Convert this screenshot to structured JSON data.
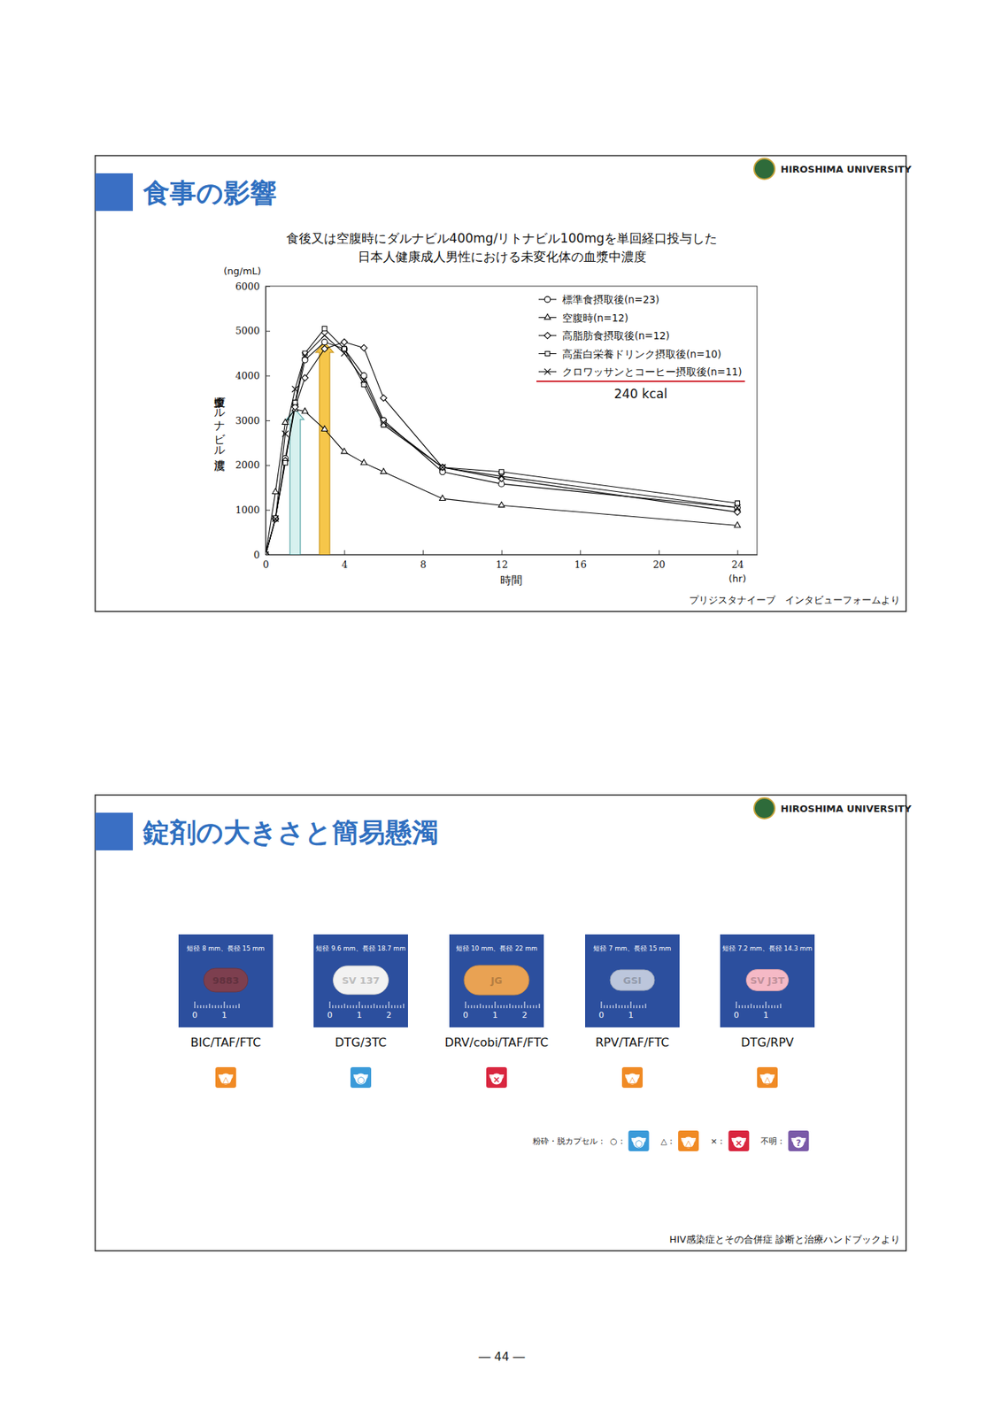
{
  "slides": [
    {
      "heading": "食事の影響",
      "logo": "HIROSHIMA UNIVERSITY",
      "source": "プリジスタナイーブ　インタビューフォームより"
    },
    {
      "heading": "錠剤の大きさと簡易懸濁",
      "logo": "HIROSHIMA UNIVERSITY",
      "source": "HIV感染症とその合併症 診断と治療ハンドブックより",
      "tablets": [
        {
          "caption": "短径 8 mm、長径 15 mm",
          "short_mm": 8,
          "long_mm": 15,
          "imprint": "9883",
          "color": "#7d3f4f",
          "ruler_labels": [
            "0",
            "1"
          ],
          "drug": "BIC/TAF/FTC",
          "icon_symbol": "△",
          "icon_color": "#f08a24"
        },
        {
          "caption": "短径 9.6 mm、長径 18.7 mm",
          "short_mm": 9.6,
          "long_mm": 18.7,
          "imprint": "SV 137",
          "color": "#f2f2f2",
          "ruler_labels": [
            "0",
            "1",
            "2"
          ],
          "drug": "DTG/3TC",
          "icon_symbol": "○",
          "icon_color": "#3a9ad9"
        },
        {
          "caption": "短径 10 mm、長径 22 mm",
          "short_mm": 10,
          "long_mm": 22,
          "imprint": "JG",
          "color": "#e9a253",
          "ruler_labels": [
            "0",
            "1",
            "2"
          ],
          "drug": "DRV/cobi/TAF/FTC",
          "icon_symbol": "×",
          "icon_color": "#d9263f"
        },
        {
          "caption": "短径 7 mm、長径 15 mm",
          "short_mm": 7,
          "long_mm": 15,
          "imprint": "GSI",
          "color": "#bcc6dc",
          "ruler_labels": [
            "0",
            "1"
          ],
          "drug": "RPV/TAF/FTC",
          "icon_symbol": "△",
          "icon_color": "#f08a24"
        },
        {
          "caption": "短径 7.2 mm、長径 14.3 mm",
          "short_mm": 7.2,
          "long_mm": 14.3,
          "imprint": "SV J3T",
          "color": "#f5b9c6",
          "ruler_labels": [
            "0",
            "1"
          ],
          "drug": "DTG/RPV",
          "icon_symbol": "△",
          "icon_color": "#f08a24"
        }
      ],
      "legend_title": "粉砕・脱カプセル：",
      "legend_items": [
        {
          "label": "○：",
          "symbol": "○",
          "color": "#3a9ad9"
        },
        {
          "label": "△：",
          "symbol": "△",
          "color": "#f08a24"
        },
        {
          "label": "×：",
          "symbol": "×",
          "color": "#d9263f"
        },
        {
          "label": "不明：",
          "symbol": "?",
          "color": "#7a5aa8"
        }
      ]
    }
  ],
  "chart_data": {
    "type": "line",
    "title": "食後又は空腹時にダルナビル400mg/リトナビル100mgを単回経口投与した",
    "subtitle": "日本人健康成人男性における未変化体の血漿中濃度",
    "xlabel": "時間",
    "x_unit": "(hr)",
    "ylabel": "血漿中ダルナビル濃度",
    "y_unit": "(ng/mL)",
    "x": [
      0,
      0.5,
      1,
      1.5,
      2,
      3,
      4,
      5,
      6,
      9,
      12,
      24
    ],
    "series": [
      {
        "name": "標準食摂取後(n=23)",
        "color": "#000000",
        "marker": "circle",
        "values": [
          0,
          800,
          2150,
          3350,
          4350,
          4750,
          4600,
          4000,
          3000,
          1850,
          1580,
          1050
        ]
      },
      {
        "name": "空腹時(n=12)",
        "color": "#000000",
        "marker": "triangle",
        "values": [
          0,
          1400,
          2950,
          3250,
          3200,
          2800,
          2300,
          2050,
          1850,
          1250,
          1100,
          650
        ]
      },
      {
        "name": "高脂肪食摂取後(n=12)",
        "color": "#000000",
        "marker": "diamond",
        "values": [
          0,
          800,
          2100,
          3300,
          3950,
          4600,
          4750,
          4620,
          3500,
          1950,
          1700,
          950
        ]
      },
      {
        "name": "高蛋白栄養ドリンク摂取後(n=10)",
        "color": "#000000",
        "marker": "square",
        "values": [
          0,
          820,
          2050,
          3400,
          4500,
          5050,
          4600,
          3800,
          2900,
          1950,
          1850,
          1150
        ]
      },
      {
        "name": "クロワッサンとコーヒー摂取後(n=11)",
        "color": "#000000",
        "marker": "x",
        "values": [
          0,
          800,
          2700,
          3700,
          4450,
          4900,
          4500,
          3900,
          2950,
          1950,
          1750,
          1050
        ]
      }
    ],
    "annotation": "240 kcal",
    "xlim": [
      0,
      25
    ],
    "xticks": [
      0,
      4,
      8,
      12,
      16,
      20,
      24
    ],
    "ylim": [
      0,
      6000
    ],
    "yticks": [
      0,
      1000,
      2000,
      3000,
      4000,
      5000,
      6000
    ],
    "legend": "upper right",
    "grid": false
  },
  "page_number": "― 44 ―"
}
